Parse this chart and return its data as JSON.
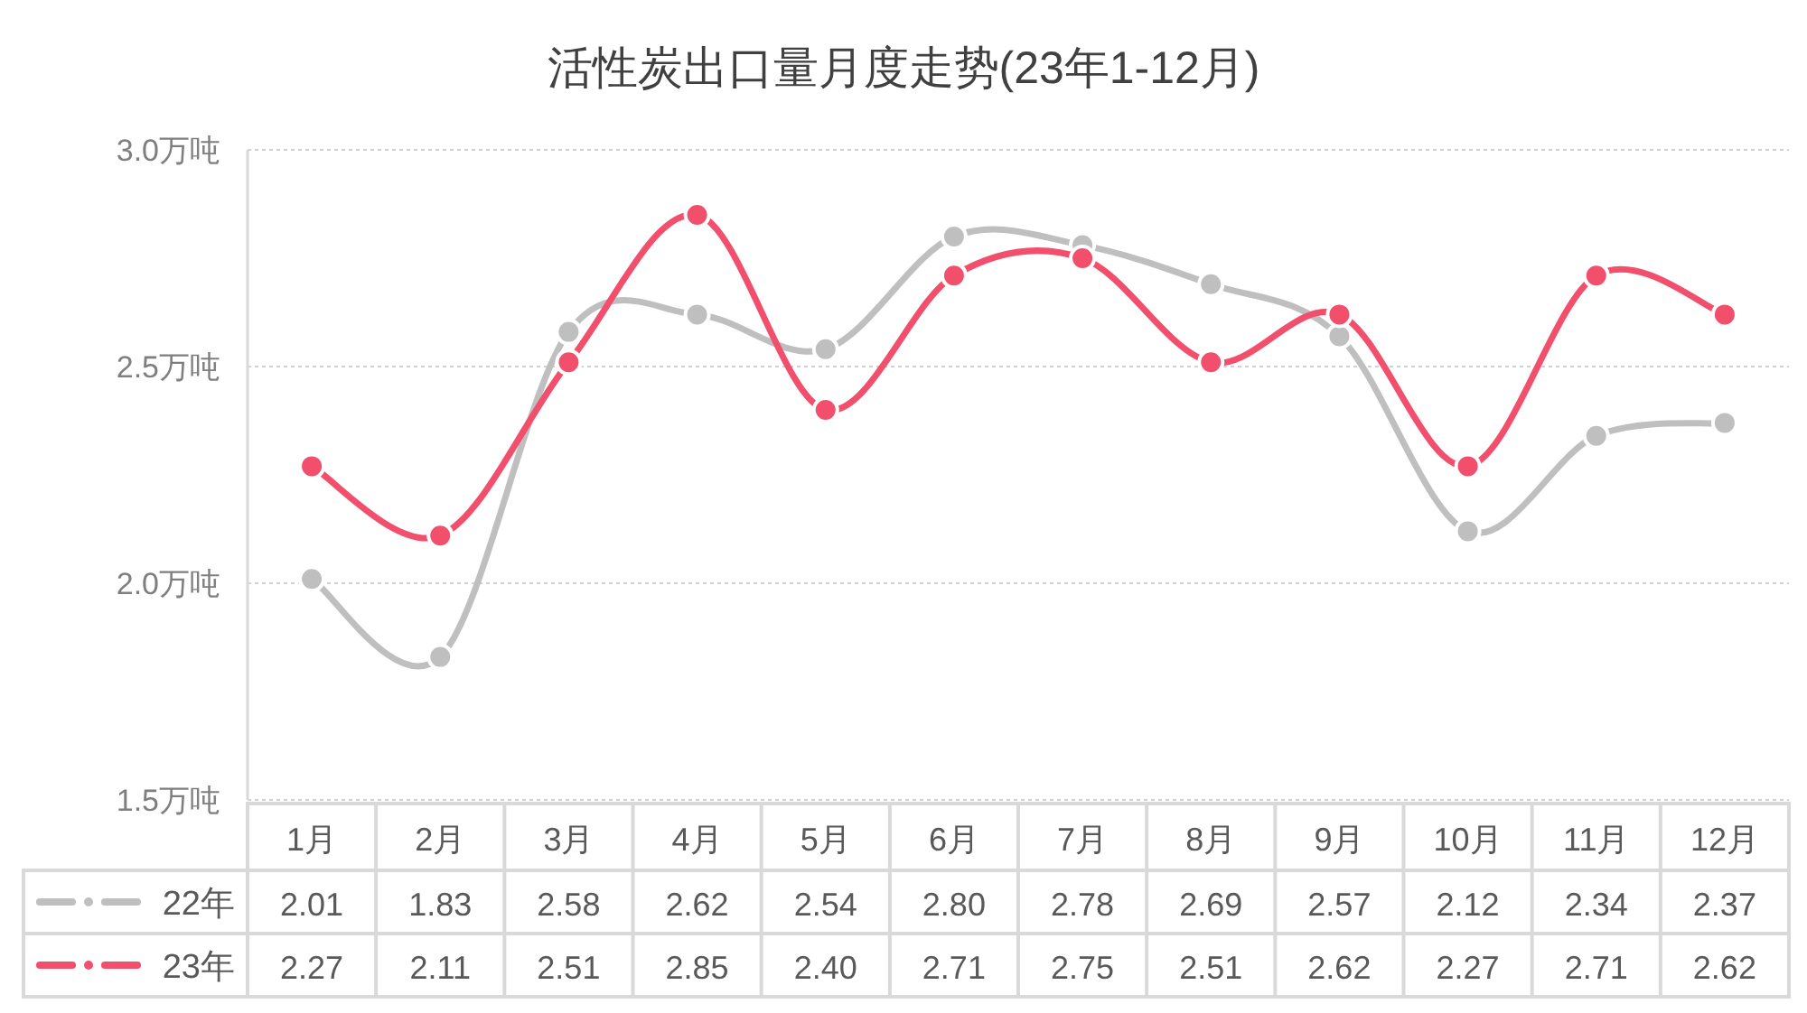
{
  "chart_data": {
    "type": "line",
    "title": "活性炭出口量月度走势(23年1-12月)",
    "categories": [
      "1月",
      "2月",
      "3月",
      "4月",
      "5月",
      "6月",
      "7月",
      "8月",
      "9月",
      "10月",
      "11月",
      "12月"
    ],
    "series": [
      {
        "name": "22年",
        "color": "#bfbfbf",
        "values": [
          2.01,
          1.83,
          2.58,
          2.62,
          2.54,
          2.8,
          2.78,
          2.69,
          2.57,
          2.12,
          2.34,
          2.37
        ],
        "value_labels": [
          "2.01",
          "1.83",
          "2.58",
          "2.62",
          "2.54",
          "2.80",
          "2.78",
          "2.69",
          "2.57",
          "2.12",
          "2.34",
          "2.37"
        ]
      },
      {
        "name": "23年",
        "color": "#f24f6c",
        "values": [
          2.27,
          2.11,
          2.51,
          2.85,
          2.4,
          2.71,
          2.75,
          2.51,
          2.62,
          2.27,
          2.71,
          2.62
        ],
        "value_labels": [
          "2.27",
          "2.11",
          "2.51",
          "2.85",
          "2.40",
          "2.71",
          "2.75",
          "2.51",
          "2.62",
          "2.27",
          "2.71",
          "2.62"
        ]
      }
    ],
    "ylim": [
      1.5,
      3.0
    ],
    "yticks": [
      {
        "value": 1.5,
        "label": "1.5万吨"
      },
      {
        "value": 2.0,
        "label": "2.0万吨"
      },
      {
        "value": 2.5,
        "label": "2.5万吨"
      },
      {
        "value": 3.0,
        "label": "3.0万吨"
      }
    ],
    "grid": "y",
    "legend": "bottom left",
    "marker": "circle",
    "line_style": "solid"
  }
}
